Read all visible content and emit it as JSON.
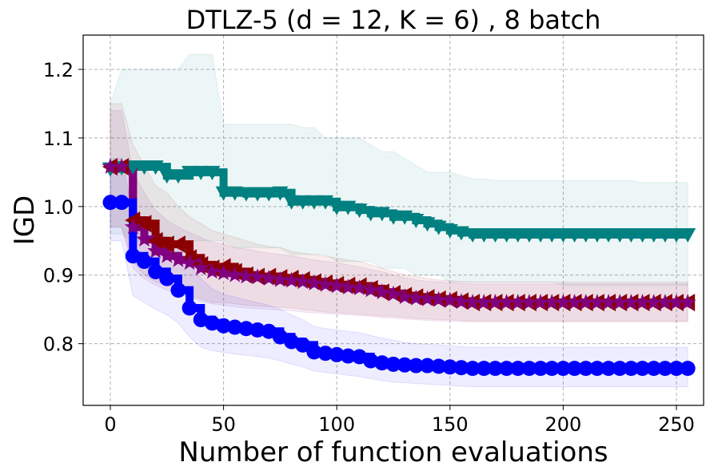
{
  "chart_data": {
    "type": "line",
    "title": "DTLZ-5 (d = 12, K = 6) , 8 batch",
    "xlabel": "Number of function evaluations",
    "ylabel": "IGD",
    "xlim": [
      -12,
      262
    ],
    "ylim": [
      0.71,
      1.25
    ],
    "xticks": [
      0,
      50,
      100,
      150,
      200,
      250
    ],
    "yticks": [
      0.8,
      0.9,
      1.0,
      1.1,
      1.2
    ],
    "xtick_labels": [
      "0",
      "50",
      "100",
      "150",
      "200",
      "250"
    ],
    "ytick_labels": [
      "0.8",
      "0.9",
      "1.0",
      "1.1",
      "1.2"
    ],
    "grid": true,
    "series": [
      {
        "name": "teal",
        "color": "#008080",
        "marker": "triangle-down",
        "x": [
          0,
          5,
          10,
          15,
          20,
          25,
          30,
          35,
          40,
          45,
          50,
          55,
          60,
          65,
          70,
          75,
          80,
          85,
          90,
          95,
          100,
          105,
          110,
          115,
          120,
          125,
          130,
          135,
          140,
          145,
          150,
          155,
          160,
          165,
          170,
          175,
          180,
          185,
          190,
          195,
          200,
          205,
          210,
          215,
          220,
          225,
          230,
          235,
          240,
          245,
          250,
          255
        ],
        "y": [
          1.055,
          1.057,
          1.058,
          1.058,
          1.058,
          1.045,
          1.045,
          1.05,
          1.05,
          1.05,
          1.02,
          1.02,
          1.019,
          1.019,
          1.019,
          1.02,
          1.007,
          1.007,
          1.007,
          1.007,
          0.999,
          0.999,
          0.995,
          0.99,
          0.99,
          0.985,
          0.985,
          0.98,
          0.975,
          0.97,
          0.965,
          0.962,
          0.959,
          0.959,
          0.959,
          0.959,
          0.959,
          0.959,
          0.959,
          0.959,
          0.959,
          0.959,
          0.959,
          0.959,
          0.959,
          0.959,
          0.959,
          0.959,
          0.959,
          0.959,
          0.959,
          0.959
        ],
        "lower": [
          0.96,
          0.96,
          0.95,
          0.95,
          0.95,
          0.95,
          0.95,
          0.95,
          0.95,
          0.95,
          0.95,
          0.94,
          0.94,
          0.94,
          0.94,
          0.94,
          0.93,
          0.93,
          0.93,
          0.93,
          0.92,
          0.92,
          0.92,
          0.92,
          0.91,
          0.91,
          0.91,
          0.9,
          0.9,
          0.9,
          0.89,
          0.89,
          0.89,
          0.89,
          0.89,
          0.89,
          0.89,
          0.89,
          0.89,
          0.89,
          0.885,
          0.885,
          0.885,
          0.885,
          0.885,
          0.885,
          0.885,
          0.885,
          0.885,
          0.885,
          0.885,
          0.885
        ],
        "upper": [
          1.15,
          1.2,
          1.2,
          1.2,
          1.2,
          1.2,
          1.2,
          1.222,
          1.222,
          1.222,
          1.12,
          1.12,
          1.12,
          1.12,
          1.12,
          1.12,
          1.12,
          1.115,
          1.115,
          1.1,
          1.1,
          1.1,
          1.1,
          1.09,
          1.08,
          1.08,
          1.07,
          1.06,
          1.05,
          1.05,
          1.05,
          1.045,
          1.04,
          1.04,
          1.038,
          1.038,
          1.038,
          1.038,
          1.038,
          1.038,
          1.038,
          1.038,
          1.038,
          1.038,
          1.038,
          1.038,
          1.038,
          1.035,
          1.035,
          1.035,
          1.035,
          1.035
        ]
      },
      {
        "name": "dark red",
        "color": "#8b0000",
        "marker": "triangle-left",
        "x": [
          0,
          5,
          10,
          15,
          20,
          25,
          30,
          35,
          40,
          45,
          50,
          55,
          60,
          65,
          70,
          75,
          80,
          85,
          90,
          95,
          100,
          105,
          110,
          115,
          120,
          125,
          130,
          135,
          140,
          145,
          150,
          155,
          160,
          165,
          170,
          175,
          180,
          185,
          190,
          195,
          200,
          205,
          210,
          215,
          220,
          225,
          230,
          235,
          240,
          245,
          250,
          255
        ],
        "y": [
          1.058,
          1.058,
          0.98,
          0.975,
          0.95,
          0.945,
          0.945,
          0.925,
          0.915,
          0.91,
          0.912,
          0.905,
          0.9,
          0.898,
          0.898,
          0.896,
          0.895,
          0.893,
          0.89,
          0.888,
          0.886,
          0.885,
          0.884,
          0.88,
          0.875,
          0.873,
          0.87,
          0.868,
          0.867,
          0.865,
          0.864,
          0.862,
          0.86,
          0.86,
          0.86,
          0.86,
          0.86,
          0.86,
          0.86,
          0.86,
          0.86,
          0.86,
          0.86,
          0.86,
          0.86,
          0.86,
          0.86,
          0.86,
          0.86,
          0.86,
          0.86,
          0.86
        ],
        "lower": [
          0.97,
          0.97,
          0.92,
          0.9,
          0.89,
          0.885,
          0.88,
          0.87,
          0.865,
          0.86,
          0.86,
          0.858,
          0.856,
          0.855,
          0.854,
          0.853,
          0.852,
          0.85,
          0.848,
          0.846,
          0.845,
          0.844,
          0.843,
          0.842,
          0.84,
          0.84,
          0.838,
          0.837,
          0.836,
          0.835,
          0.835,
          0.834,
          0.833,
          0.833,
          0.833,
          0.833,
          0.833,
          0.833,
          0.833,
          0.833,
          0.833,
          0.833,
          0.833,
          0.833,
          0.833,
          0.833,
          0.833,
          0.833,
          0.833,
          0.833,
          0.833,
          0.833
        ],
        "upper": [
          1.15,
          1.15,
          1.09,
          1.06,
          1.03,
          1.02,
          1.0,
          0.985,
          0.975,
          0.965,
          0.96,
          0.955,
          0.95,
          0.945,
          0.942,
          0.94,
          0.935,
          0.932,
          0.93,
          0.928,
          0.925,
          0.922,
          0.92,
          0.915,
          0.91,
          0.905,
          0.9,
          0.898,
          0.895,
          0.893,
          0.892,
          0.891,
          0.89,
          0.89,
          0.89,
          0.89,
          0.89,
          0.89,
          0.89,
          0.89,
          0.89,
          0.89,
          0.89,
          0.89,
          0.89,
          0.89,
          0.89,
          0.89,
          0.89,
          0.89,
          0.89,
          0.89
        ]
      },
      {
        "name": "purple",
        "color": "#800080",
        "marker": "star",
        "x": [
          0,
          5,
          10,
          15,
          20,
          25,
          30,
          35,
          40,
          45,
          50,
          55,
          60,
          65,
          70,
          75,
          80,
          85,
          90,
          95,
          100,
          105,
          110,
          115,
          120,
          125,
          130,
          135,
          140,
          145,
          150,
          155,
          160,
          165,
          170,
          175,
          180,
          185,
          190,
          195,
          200,
          205,
          210,
          215,
          220,
          225,
          230,
          235,
          240,
          245,
          250,
          255
        ],
        "y": [
          1.058,
          1.058,
          0.97,
          0.952,
          0.935,
          0.928,
          0.922,
          0.918,
          0.91,
          0.905,
          0.903,
          0.9,
          0.898,
          0.897,
          0.895,
          0.893,
          0.892,
          0.89,
          0.888,
          0.886,
          0.884,
          0.882,
          0.881,
          0.878,
          0.875,
          0.872,
          0.868,
          0.866,
          0.865,
          0.864,
          0.863,
          0.861,
          0.86,
          0.86,
          0.86,
          0.86,
          0.86,
          0.86,
          0.86,
          0.86,
          0.86,
          0.86,
          0.86,
          0.86,
          0.86,
          0.86,
          0.86,
          0.86,
          0.86,
          0.86,
          0.86,
          0.86
        ],
        "lower": [
          0.97,
          0.97,
          0.91,
          0.895,
          0.885,
          0.878,
          0.872,
          0.868,
          0.862,
          0.858,
          0.856,
          0.854,
          0.852,
          0.851,
          0.85,
          0.849,
          0.848,
          0.846,
          0.845,
          0.844,
          0.843,
          0.842,
          0.841,
          0.84,
          0.838,
          0.837,
          0.836,
          0.835,
          0.834,
          0.833,
          0.833,
          0.832,
          0.832,
          0.832,
          0.832,
          0.832,
          0.832,
          0.832,
          0.832,
          0.832,
          0.832,
          0.832,
          0.832,
          0.832,
          0.832,
          0.832,
          0.832,
          0.832,
          0.832,
          0.832,
          0.832,
          0.832
        ],
        "upper": [
          1.14,
          1.14,
          1.05,
          1.02,
          0.995,
          0.98,
          0.97,
          0.962,
          0.955,
          0.948,
          0.945,
          0.94,
          0.938,
          0.935,
          0.932,
          0.93,
          0.928,
          0.925,
          0.922,
          0.92,
          0.918,
          0.915,
          0.912,
          0.908,
          0.905,
          0.9,
          0.896,
          0.893,
          0.891,
          0.89,
          0.889,
          0.888,
          0.887,
          0.887,
          0.887,
          0.887,
          0.887,
          0.887,
          0.887,
          0.887,
          0.887,
          0.887,
          0.887,
          0.887,
          0.887,
          0.887,
          0.887,
          0.887,
          0.887,
          0.887,
          0.887,
          0.887
        ]
      },
      {
        "name": "blue",
        "color": "#0000ff",
        "marker": "circle",
        "x": [
          0,
          5,
          10,
          15,
          20,
          25,
          30,
          35,
          40,
          45,
          50,
          55,
          60,
          65,
          70,
          75,
          80,
          85,
          90,
          95,
          100,
          105,
          110,
          115,
          120,
          125,
          130,
          135,
          140,
          145,
          150,
          155,
          160,
          165,
          170,
          175,
          180,
          185,
          190,
          195,
          200,
          205,
          210,
          215,
          220,
          225,
          230,
          235,
          240,
          245,
          250,
          255
        ],
        "y": [
          1.006,
          1.006,
          0.928,
          0.92,
          0.905,
          0.895,
          0.878,
          0.852,
          0.835,
          0.83,
          0.826,
          0.824,
          0.822,
          0.82,
          0.818,
          0.81,
          0.803,
          0.798,
          0.788,
          0.786,
          0.784,
          0.782,
          0.781,
          0.775,
          0.772,
          0.77,
          0.769,
          0.768,
          0.768,
          0.767,
          0.766,
          0.765,
          0.764,
          0.764,
          0.764,
          0.764,
          0.764,
          0.764,
          0.764,
          0.764,
          0.764,
          0.764,
          0.764,
          0.764,
          0.764,
          0.764,
          0.764,
          0.764,
          0.764,
          0.764,
          0.764,
          0.764
        ],
        "lower": [
          0.95,
          0.95,
          0.87,
          0.86,
          0.85,
          0.842,
          0.83,
          0.81,
          0.795,
          0.79,
          0.787,
          0.785,
          0.783,
          0.781,
          0.779,
          0.775,
          0.77,
          0.766,
          0.76,
          0.758,
          0.756,
          0.754,
          0.752,
          0.749,
          0.746,
          0.744,
          0.743,
          0.742,
          0.741,
          0.74,
          0.739,
          0.738,
          0.737,
          0.737,
          0.737,
          0.737,
          0.737,
          0.737,
          0.737,
          0.737,
          0.737,
          0.737,
          0.737,
          0.737,
          0.737,
          0.737,
          0.737,
          0.737,
          0.737,
          0.737,
          0.737,
          0.737
        ],
        "upper": [
          1.07,
          1.07,
          0.99,
          0.98,
          0.965,
          0.955,
          0.94,
          0.915,
          0.895,
          0.88,
          0.872,
          0.868,
          0.864,
          0.86,
          0.856,
          0.85,
          0.842,
          0.835,
          0.825,
          0.822,
          0.82,
          0.818,
          0.816,
          0.812,
          0.808,
          0.805,
          0.802,
          0.8,
          0.799,
          0.798,
          0.797,
          0.796,
          0.795,
          0.795,
          0.795,
          0.795,
          0.795,
          0.795,
          0.795,
          0.795,
          0.795,
          0.795,
          0.795,
          0.795,
          0.795,
          0.795,
          0.795,
          0.795,
          0.795,
          0.795,
          0.795,
          0.795
        ]
      }
    ]
  }
}
